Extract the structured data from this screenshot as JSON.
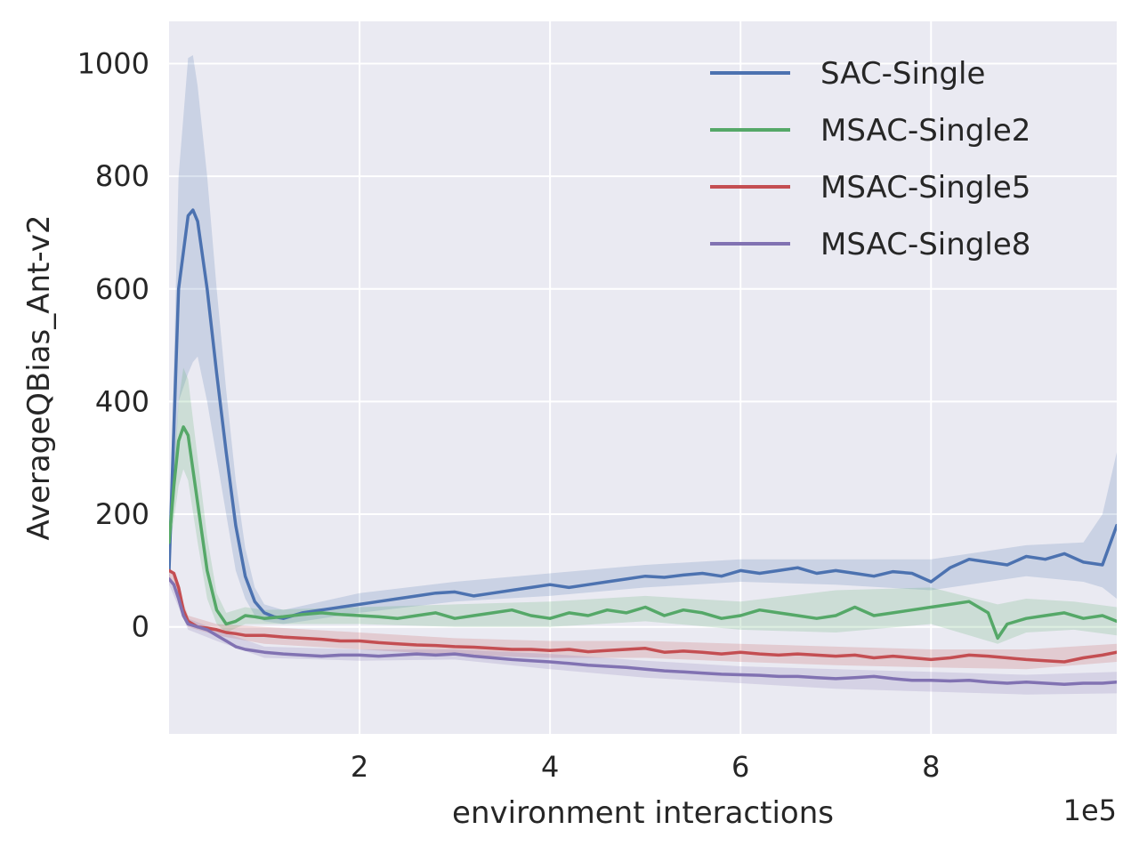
{
  "chart_data": {
    "type": "line",
    "xlabel": "environment interactions",
    "ylabel": "AverageQBias_Ant-v2",
    "x_scale_label": "1e5",
    "xlim": [
      0.0,
      9.95
    ],
    "ylim": [
      -190,
      1075
    ],
    "x_ticks": [
      2,
      4,
      6,
      8
    ],
    "x_tick_labels": [
      "2",
      "4",
      "6",
      "8"
    ],
    "y_ticks": [
      0,
      200,
      400,
      600,
      800,
      1000
    ],
    "y_tick_labels": [
      "0",
      "200",
      "400",
      "600",
      "800",
      "1000"
    ],
    "grid": true,
    "legend_position": "top-right",
    "background_color": "#EAEAF2",
    "grid_color": "#FFFFFF",
    "series": [
      {
        "name": "SAC-Single",
        "color": "#4C72B0",
        "x": [
          0.0,
          0.1,
          0.2,
          0.25,
          0.3,
          0.4,
          0.5,
          0.6,
          0.7,
          0.8,
          0.9,
          1.0,
          1.1,
          1.2,
          1.4,
          1.6,
          1.8,
          2.0,
          2.2,
          2.4,
          2.6,
          2.8,
          3.0,
          3.2,
          3.4,
          3.6,
          3.8,
          4.0,
          4.2,
          4.4,
          4.6,
          4.8,
          5.0,
          5.2,
          5.4,
          5.6,
          5.8,
          6.0,
          6.2,
          6.4,
          6.6,
          6.8,
          7.0,
          7.2,
          7.4,
          7.6,
          7.8,
          8.0,
          8.2,
          8.4,
          8.6,
          8.8,
          9.0,
          9.2,
          9.4,
          9.6,
          9.8,
          9.95
        ],
        "y": [
          100,
          600,
          730,
          740,
          720,
          600,
          450,
          310,
          180,
          90,
          45,
          25,
          18,
          15,
          25,
          30,
          35,
          40,
          45,
          50,
          55,
          60,
          62,
          55,
          60,
          65,
          70,
          75,
          70,
          75,
          80,
          85,
          90,
          88,
          92,
          95,
          90,
          100,
          95,
          100,
          105,
          95,
          100,
          95,
          90,
          98,
          95,
          80,
          105,
          120,
          115,
          110,
          125,
          120,
          130,
          115,
          110,
          180
        ]
      },
      {
        "name": "MSAC-Single2",
        "color": "#55A868",
        "x": [
          0.0,
          0.05,
          0.1,
          0.15,
          0.2,
          0.3,
          0.4,
          0.5,
          0.6,
          0.7,
          0.8,
          0.9,
          1.0,
          1.2,
          1.4,
          1.6,
          1.8,
          2.0,
          2.2,
          2.4,
          2.6,
          2.8,
          3.0,
          3.2,
          3.4,
          3.6,
          3.8,
          4.0,
          4.2,
          4.4,
          4.6,
          4.8,
          5.0,
          5.2,
          5.4,
          5.6,
          5.8,
          6.0,
          6.2,
          6.4,
          6.6,
          6.8,
          7.0,
          7.2,
          7.4,
          7.6,
          7.8,
          8.0,
          8.2,
          8.4,
          8.6,
          8.7,
          8.8,
          9.0,
          9.2,
          9.4,
          9.6,
          9.8,
          9.95
        ],
        "y": [
          150,
          250,
          330,
          355,
          340,
          220,
          100,
          30,
          5,
          10,
          20,
          18,
          15,
          18,
          22,
          25,
          22,
          20,
          18,
          15,
          20,
          25,
          15,
          20,
          25,
          30,
          20,
          15,
          25,
          20,
          30,
          25,
          35,
          20,
          30,
          25,
          15,
          20,
          30,
          25,
          20,
          15,
          20,
          35,
          20,
          25,
          30,
          35,
          40,
          45,
          25,
          -20,
          5,
          15,
          20,
          25,
          15,
          20,
          10
        ]
      },
      {
        "name": "MSAC-Single5",
        "color": "#C44E52",
        "x": [
          0.0,
          0.05,
          0.1,
          0.15,
          0.2,
          0.3,
          0.4,
          0.5,
          0.6,
          0.7,
          0.8,
          1.0,
          1.2,
          1.4,
          1.6,
          1.8,
          2.0,
          2.2,
          2.4,
          2.6,
          2.8,
          3.0,
          3.2,
          3.4,
          3.6,
          3.8,
          4.0,
          4.2,
          4.4,
          4.6,
          4.8,
          5.0,
          5.2,
          5.4,
          5.6,
          5.8,
          6.0,
          6.2,
          6.4,
          6.6,
          6.8,
          7.0,
          7.2,
          7.4,
          7.6,
          7.8,
          8.0,
          8.2,
          8.4,
          8.6,
          8.8,
          9.0,
          9.2,
          9.4,
          9.6,
          9.8,
          9.95
        ],
        "y": [
          100,
          95,
          70,
          30,
          10,
          0,
          -2,
          -5,
          -10,
          -12,
          -15,
          -15,
          -18,
          -20,
          -22,
          -25,
          -25,
          -28,
          -30,
          -32,
          -33,
          -35,
          -36,
          -38,
          -40,
          -40,
          -42,
          -40,
          -44,
          -42,
          -40,
          -38,
          -45,
          -43,
          -45,
          -48,
          -45,
          -48,
          -50,
          -48,
          -50,
          -52,
          -50,
          -55,
          -52,
          -55,
          -58,
          -55,
          -50,
          -52,
          -55,
          -58,
          -60,
          -62,
          -55,
          -50,
          -45
        ]
      },
      {
        "name": "MSAC-Single8",
        "color": "#8172B2",
        "x": [
          0.0,
          0.05,
          0.1,
          0.15,
          0.2,
          0.3,
          0.4,
          0.5,
          0.6,
          0.7,
          0.8,
          1.0,
          1.2,
          1.4,
          1.6,
          1.8,
          2.0,
          2.2,
          2.4,
          2.6,
          2.8,
          3.0,
          3.2,
          3.4,
          3.6,
          3.8,
          4.0,
          4.2,
          4.4,
          4.6,
          4.8,
          5.0,
          5.2,
          5.4,
          5.6,
          5.8,
          6.0,
          6.2,
          6.4,
          6.6,
          6.8,
          7.0,
          7.2,
          7.4,
          7.6,
          7.8,
          8.0,
          8.2,
          8.4,
          8.6,
          8.8,
          9.0,
          9.2,
          9.4,
          9.6,
          9.8,
          9.95
        ],
        "y": [
          85,
          75,
          50,
          20,
          5,
          0,
          -5,
          -15,
          -25,
          -35,
          -40,
          -45,
          -48,
          -50,
          -52,
          -50,
          -50,
          -52,
          -50,
          -48,
          -50,
          -48,
          -52,
          -55,
          -58,
          -60,
          -62,
          -65,
          -68,
          -70,
          -72,
          -75,
          -78,
          -80,
          -82,
          -84,
          -85,
          -86,
          -88,
          -88,
          -90,
          -92,
          -90,
          -88,
          -92,
          -95,
          -95,
          -96,
          -95,
          -98,
          -100,
          -98,
          -100,
          -102,
          -100,
          -100,
          -98
        ]
      }
    ],
    "bands": [
      {
        "series": "SAC-Single",
        "x": [
          0.0,
          0.1,
          0.2,
          0.25,
          0.3,
          0.4,
          0.5,
          0.6,
          0.7,
          0.8,
          0.9,
          1.0,
          1.2,
          1.6,
          2.0,
          3.0,
          4.0,
          5.0,
          6.0,
          7.0,
          8.0,
          9.0,
          9.6,
          9.8,
          9.95
        ],
        "upper": [
          120,
          800,
          1010,
          1015,
          960,
          800,
          600,
          420,
          260,
          140,
          70,
          40,
          30,
          45,
          60,
          80,
          95,
          110,
          120,
          120,
          120,
          145,
          150,
          200,
          310
        ],
        "lower": [
          80,
          400,
          450,
          470,
          480,
          400,
          300,
          200,
          100,
          50,
          20,
          10,
          5,
          15,
          25,
          45,
          55,
          70,
          80,
          75,
          65,
          90,
          80,
          70,
          50
        ]
      },
      {
        "series": "MSAC-Single2",
        "x": [
          0.0,
          0.1,
          0.15,
          0.2,
          0.3,
          0.4,
          0.5,
          0.6,
          0.8,
          1.0,
          2.0,
          3.0,
          4.0,
          5.0,
          6.0,
          7.0,
          8.0,
          8.7,
          9.0,
          9.5,
          9.95
        ],
        "upper": [
          170,
          400,
          460,
          440,
          300,
          160,
          60,
          25,
          35,
          30,
          35,
          40,
          45,
          55,
          45,
          65,
          70,
          40,
          50,
          45,
          35
        ],
        "lower": [
          130,
          250,
          280,
          260,
          150,
          50,
          5,
          -10,
          5,
          5,
          5,
          0,
          0,
          10,
          -5,
          -10,
          5,
          -30,
          -10,
          -5,
          -15
        ]
      },
      {
        "series": "MSAC-Single5",
        "x": [
          0.0,
          0.2,
          0.5,
          1.0,
          2.0,
          3.0,
          4.0,
          5.0,
          6.0,
          7.0,
          8.0,
          9.0,
          9.95
        ],
        "upper": [
          110,
          20,
          5,
          0,
          -10,
          -20,
          -25,
          -25,
          -30,
          -35,
          -40,
          -40,
          -30
        ],
        "lower": [
          90,
          0,
          -15,
          -30,
          -40,
          -50,
          -55,
          -55,
          -62,
          -68,
          -72,
          -75,
          -62
        ]
      },
      {
        "series": "MSAC-Single8",
        "x": [
          0.0,
          0.2,
          0.5,
          1.0,
          2.0,
          3.0,
          4.0,
          5.0,
          6.0,
          7.0,
          8.0,
          9.0,
          9.95
        ],
        "upper": [
          95,
          15,
          -5,
          -35,
          -40,
          -40,
          -48,
          -60,
          -70,
          -75,
          -80,
          -85,
          -80
        ],
        "lower": [
          75,
          -5,
          -25,
          -55,
          -60,
          -58,
          -75,
          -90,
          -100,
          -110,
          -115,
          -120,
          -118
        ]
      }
    ]
  }
}
